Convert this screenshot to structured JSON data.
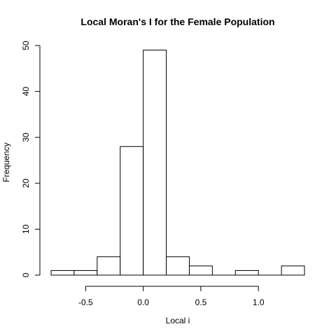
{
  "chart_data": {
    "type": "bar",
    "title": "Local Moran's I for the Female Population",
    "xlabel": "Local i",
    "ylabel": "Frequency",
    "bins": [
      {
        "from": -0.8,
        "to": -0.6,
        "count": 1
      },
      {
        "from": -0.6,
        "to": -0.4,
        "count": 1
      },
      {
        "from": -0.4,
        "to": -0.2,
        "count": 4
      },
      {
        "from": -0.2,
        "to": 0.0,
        "count": 28
      },
      {
        "from": 0.0,
        "to": 0.2,
        "count": 49
      },
      {
        "from": 0.2,
        "to": 0.4,
        "count": 4
      },
      {
        "from": 0.4,
        "to": 0.6,
        "count": 2
      },
      {
        "from": 0.6,
        "to": 0.8,
        "count": 0
      },
      {
        "from": 0.8,
        "to": 1.0,
        "count": 1
      },
      {
        "from": 1.0,
        "to": 1.2,
        "count": 0
      },
      {
        "from": 1.2,
        "to": 1.4,
        "count": 2
      }
    ],
    "x_ticks": [
      -0.5,
      0.0,
      0.5,
      1.0
    ],
    "x_tick_labels": [
      "-0.5",
      "0.0",
      "0.5",
      "1.0"
    ],
    "y_ticks": [
      0,
      10,
      20,
      30,
      40,
      50
    ],
    "y_tick_labels": [
      "0",
      "10",
      "20",
      "30",
      "40",
      "50"
    ],
    "xlim": [
      -0.8,
      1.4
    ],
    "ylim": [
      0,
      50
    ],
    "grid": false,
    "bar_fill": "#ffffff",
    "bar_stroke": "#000000"
  }
}
